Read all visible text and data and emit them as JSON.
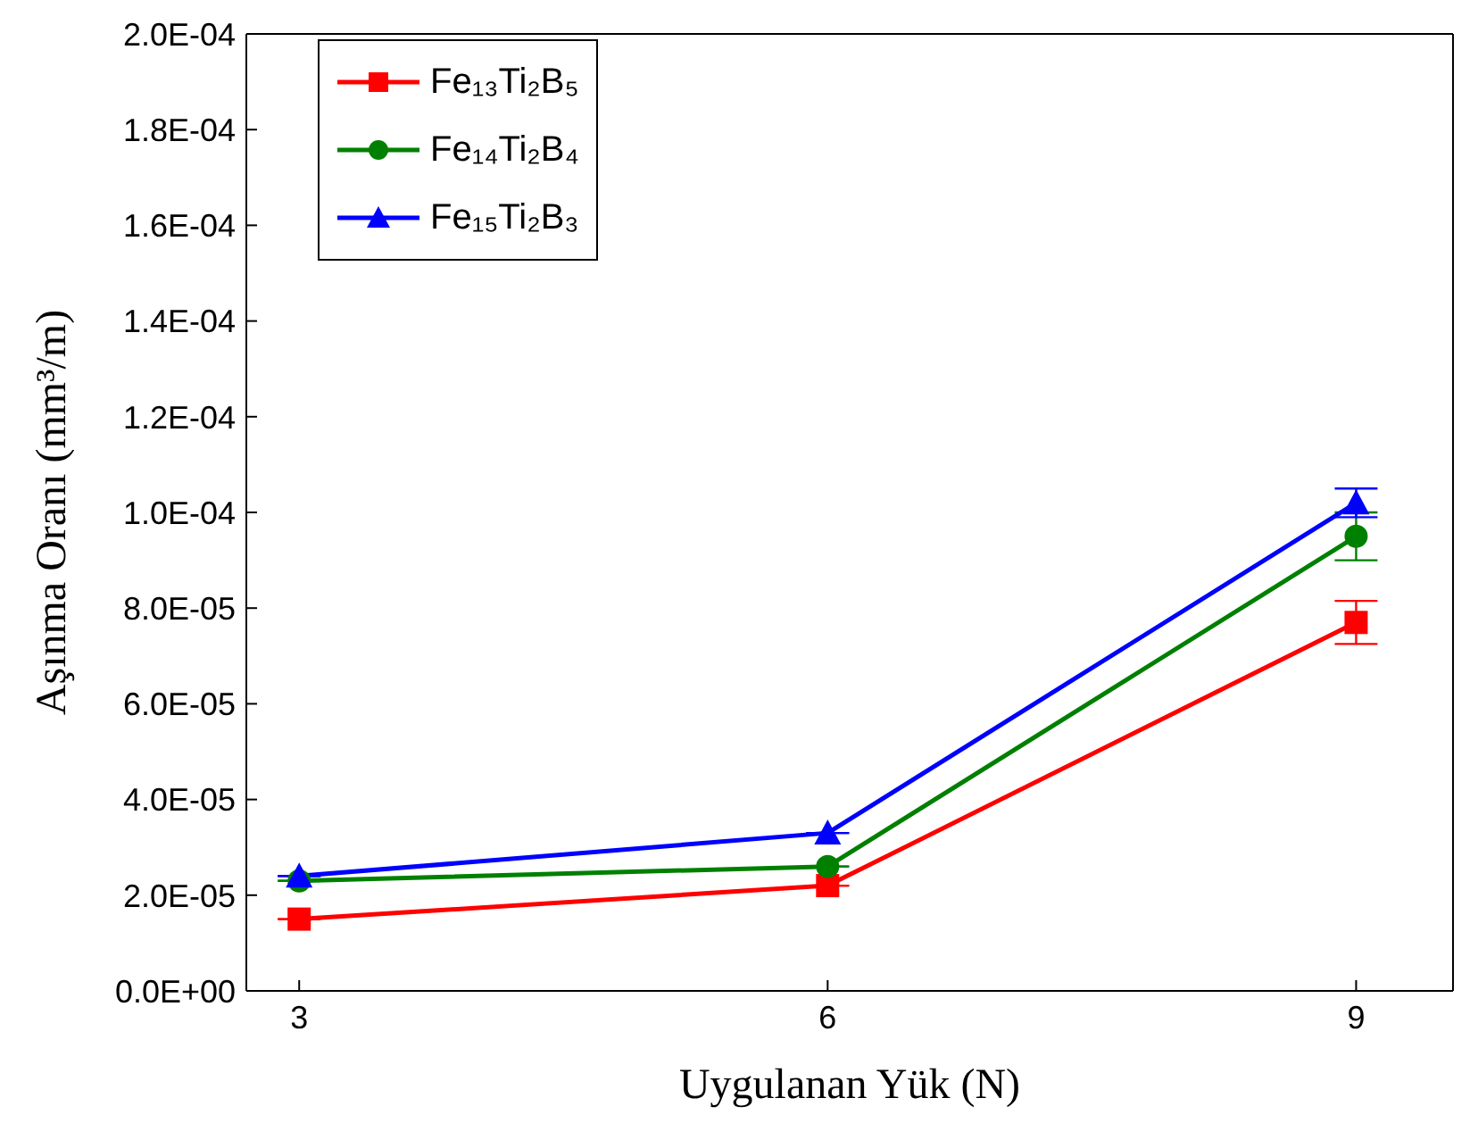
{
  "chart_data": {
    "type": "line",
    "xlabel": "Uygulanan Yük (N)",
    "ylabel": "Aşınma Oranı (mm³/m)",
    "x": [
      3,
      6,
      9
    ],
    "xlim": [
      2.7,
      9.55
    ],
    "xticks": [
      3,
      6,
      9
    ],
    "ylim": [
      0,
      0.0002
    ],
    "yticks": [
      {
        "value": 0,
        "label": "0.0E+00"
      },
      {
        "value": 2e-05,
        "label": "2.0E-05"
      },
      {
        "value": 4e-05,
        "label": "4.0E-05"
      },
      {
        "value": 6e-05,
        "label": "6.0E-05"
      },
      {
        "value": 8e-05,
        "label": "8.0E-05"
      },
      {
        "value": 0.0001,
        "label": "1.0E-04"
      },
      {
        "value": 0.00012,
        "label": "1.2E-04"
      },
      {
        "value": 0.00014,
        "label": "1.4E-04"
      },
      {
        "value": 0.00016,
        "label": "1.6E-04"
      },
      {
        "value": 0.00018,
        "label": "1.8E-04"
      },
      {
        "value": 0.0002,
        "label": "2.0E-04"
      }
    ],
    "legend": "top left",
    "grid": false,
    "line_style": "solid",
    "series": [
      {
        "name": "Fe₁₃Ti₂B₅",
        "color": "#ff0000",
        "marker": "square",
        "values": [
          1.5e-05,
          2.2e-05,
          7.7e-05
        ],
        "errors": [
          null,
          null,
          4.5e-06
        ]
      },
      {
        "name": "Fe₁₄Ti₂B₄",
        "color": "#008000",
        "marker": "circle",
        "values": [
          2.3e-05,
          2.6e-05,
          9.5e-05
        ],
        "errors": [
          null,
          null,
          5e-06
        ]
      },
      {
        "name": "Fe₁₅Ti₂B₃",
        "color": "#0000ff",
        "marker": "triangle",
        "values": [
          2.4e-05,
          3.3e-05,
          0.000102
        ],
        "errors": [
          null,
          null,
          3e-06
        ]
      }
    ]
  }
}
